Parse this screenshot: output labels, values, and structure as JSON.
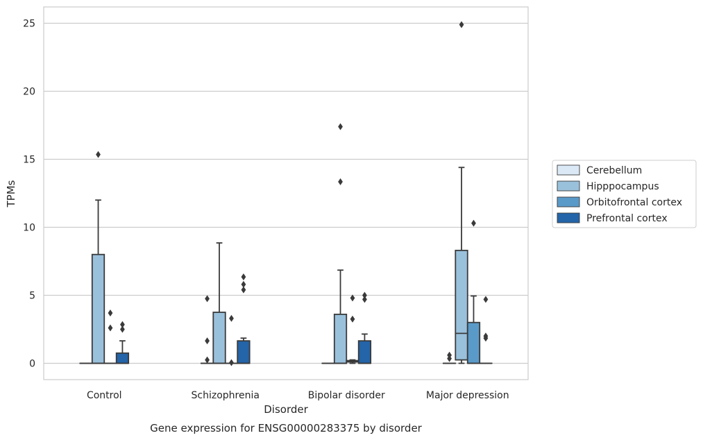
{
  "chart_data": {
    "type": "box",
    "xlabel": "Disorder",
    "ylabel": "TPMs",
    "caption": "Gene expression for ENSG00000283375 by disorder",
    "ylim": [
      -1.2,
      26.2
    ],
    "yticks": [
      0,
      5,
      10,
      15,
      20,
      25
    ],
    "grid": "horizontal",
    "legend_position": "right",
    "categories": [
      "Control",
      "Schizophrenia",
      "Bipolar disorder",
      "Major depression"
    ],
    "series": [
      {
        "name": "Cerebellum",
        "color": "#dbe9f6",
        "boxes": [
          {
            "min": 0,
            "q1": 0,
            "median": 0,
            "q3": 0,
            "max": 0,
            "outliers": []
          },
          {
            "min": 0,
            "q1": 0,
            "median": 0,
            "q3": 0,
            "max": 0,
            "outliers": [
              0.25,
              1.65,
              4.75
            ]
          },
          {
            "min": 0,
            "q1": 0,
            "median": 0,
            "q3": 0,
            "max": 0,
            "outliers": []
          },
          {
            "min": 0,
            "q1": 0,
            "median": 0,
            "q3": 0,
            "max": 0,
            "outliers": [
              0.35,
              0.6
            ]
          }
        ]
      },
      {
        "name": "Hipppocampus",
        "color": "#9ac1dc",
        "boxes": [
          {
            "min": 0,
            "q1": 0,
            "median": 0,
            "q3": 8.0,
            "max": 12.0,
            "outliers": [
              15.35
            ]
          },
          {
            "min": 0,
            "q1": 0,
            "median": 0,
            "q3": 3.75,
            "max": 8.85,
            "outliers": []
          },
          {
            "min": 0,
            "q1": 0,
            "median": 0,
            "q3": 3.6,
            "max": 6.85,
            "outliers": [
              13.35,
              17.4
            ]
          },
          {
            "min": 0,
            "q1": 0.25,
            "median": 2.2,
            "q3": 8.3,
            "max": 14.4,
            "outliers": [
              24.9
            ]
          }
        ]
      },
      {
        "name": "Orbitofrontal cortex",
        "color": "#5a9ac8",
        "boxes": [
          {
            "min": 0,
            "q1": 0,
            "median": 0,
            "q3": 0,
            "max": 0,
            "outliers": [
              2.6,
              3.7
            ]
          },
          {
            "min": 0,
            "q1": 0,
            "median": 0,
            "q3": 0,
            "max": 0,
            "outliers": [
              0.05,
              3.3
            ]
          },
          {
            "min": 0,
            "q1": 0.1,
            "median": 0.15,
            "q3": 0.2,
            "max": 0.25,
            "outliers": [
              3.25,
              4.8
            ]
          },
          {
            "min": 0,
            "q1": 0,
            "median": 0,
            "q3": 3.0,
            "max": 4.95,
            "outliers": [
              10.3
            ]
          }
        ]
      },
      {
        "name": "Prefrontal cortex",
        "color": "#2464a8",
        "boxes": [
          {
            "min": 0,
            "q1": 0,
            "median": 0,
            "q3": 0.75,
            "max": 1.65,
            "outliers": [
              2.5,
              2.85
            ]
          },
          {
            "min": 0,
            "q1": 0,
            "median": 0,
            "q3": 1.65,
            "max": 1.85,
            "outliers": [
              5.4,
              5.8,
              6.35
            ]
          },
          {
            "min": 0,
            "q1": 0,
            "median": 0,
            "q3": 1.65,
            "max": 2.15,
            "outliers": [
              4.7,
              5.0
            ]
          },
          {
            "min": 0,
            "q1": 0,
            "median": 0,
            "q3": 0,
            "max": 0,
            "outliers": [
              1.85,
              2.0,
              4.7
            ]
          }
        ]
      }
    ]
  }
}
